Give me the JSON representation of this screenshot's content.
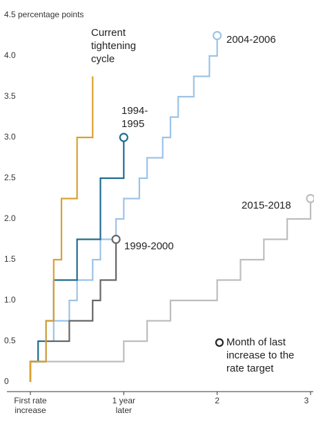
{
  "chart_data": {
    "type": "line",
    "step": "post",
    "y_label": "percentage points",
    "xlim": [
      0,
      3
    ],
    "ylim": [
      0,
      4.5
    ],
    "xticks": [
      {
        "value": 0,
        "label": "First rate increase"
      },
      {
        "value": 1,
        "label": "1 year later"
      },
      2,
      3
    ],
    "yticks": [
      0,
      0.5,
      {
        "value": 1,
        "label": "1.0"
      },
      1.5,
      {
        "value": 2,
        "label": "2.0"
      },
      2.5,
      {
        "value": 3,
        "label": "3.0"
      },
      3.5,
      {
        "value": 4,
        "label": "4.0"
      },
      4.5
    ],
    "grid": false,
    "series": [
      {
        "name": "Current tightening cycle",
        "color": "#d9a032",
        "marker_end": false,
        "x": [
          0,
          0.167,
          0.25,
          0.333,
          0.5,
          0.667
        ],
        "values": [
          0.25,
          0.75,
          1.5,
          2.25,
          3.0,
          3.75
        ]
      },
      {
        "name": "1994-1995",
        "color": "#1f6b8e",
        "marker_end": true,
        "x": [
          0,
          0.083,
          0.167,
          0.25,
          0.5,
          0.75,
          1.0
        ],
        "values": [
          0.25,
          0.5,
          0.75,
          1.25,
          1.75,
          2.5,
          3.0
        ]
      },
      {
        "name": "1999-2000",
        "color": "#666666",
        "marker_end": true,
        "x": [
          0,
          0.167,
          0.417,
          0.667,
          0.75,
          0.917
        ],
        "values": [
          0.25,
          0.5,
          0.75,
          1.0,
          1.25,
          1.75
        ]
      },
      {
        "name": "2004-2006",
        "color": "#9cc3e6",
        "marker_end": true,
        "x": [
          0,
          0.167,
          0.25,
          0.417,
          0.5,
          0.667,
          0.75,
          0.917,
          1.0,
          1.167,
          1.25,
          1.417,
          1.5,
          1.583,
          1.75,
          1.917,
          2.0
        ],
        "values": [
          0.25,
          0.5,
          0.75,
          1.0,
          1.25,
          1.5,
          1.75,
          2.0,
          2.25,
          2.5,
          2.75,
          3.0,
          3.25,
          3.5,
          3.75,
          4.0,
          4.25
        ]
      },
      {
        "name": "2015-2018",
        "color": "#bdbdbd",
        "marker_end": true,
        "x": [
          0,
          1.0,
          1.25,
          1.5,
          2.0,
          2.25,
          2.5,
          2.75,
          3.0
        ],
        "values": [
          0.25,
          0.5,
          0.75,
          1.0,
          1.25,
          1.5,
          1.75,
          2.0,
          2.25
        ]
      }
    ],
    "legend_note": "Month of last increase to the rate target"
  }
}
